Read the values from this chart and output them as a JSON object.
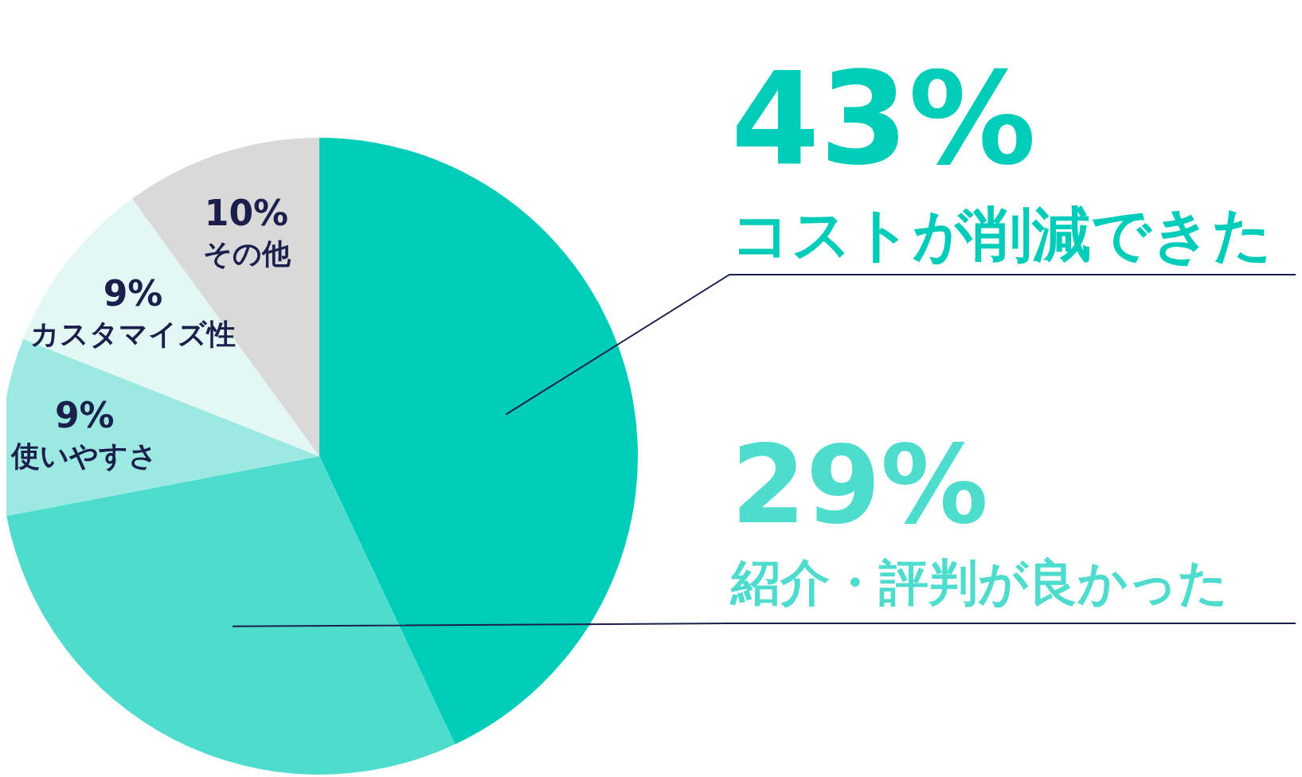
{
  "chart_data": {
    "type": "pie",
    "categories": [
      "コストが削減できた",
      "紹介・評判が良かった",
      "使いやすさ",
      "カスタマイズ性",
      "その他"
    ],
    "values": [
      43,
      29,
      9,
      9,
      10
    ],
    "colors": [
      "#00cdb9",
      "#4ddccd",
      "#9ce9e1",
      "#e3f7f5",
      "#d9d9d9"
    ],
    "value_labels": [
      "43%",
      "29%",
      "9%",
      "9%",
      "10%"
    ]
  }
}
